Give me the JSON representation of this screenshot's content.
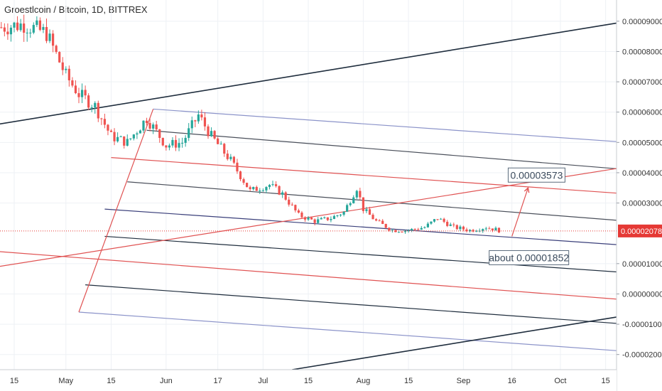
{
  "chart_data": {
    "type": "candlestick",
    "title": "Groestlcoin / Bitcoin, 1D, BITTREX",
    "y_axis": {
      "min": -2.5e-06,
      "max": 9.7e-06,
      "ticks": [
        "0.00009000",
        "0.00008000",
        "0.00007000",
        "0.00006000",
        "0.00005000",
        "0.00004000",
        "0.00003000",
        "0.00001000",
        "0.00000000",
        "-0.00001000",
        "-0.00002000"
      ],
      "tick_values": [
        9e-06,
        8e-06,
        7e-06,
        6e-06,
        5e-06,
        4e-06,
        3e-06,
        1e-06,
        0.0,
        -1e-06,
        -2e-06
      ]
    },
    "x_axis": {
      "ticks": [
        "15",
        "May",
        "15",
        "Jun",
        "17",
        "Jul",
        "15",
        "Aug",
        "15",
        "Sep",
        "16",
        "Oct",
        "15"
      ],
      "tick_dates": [
        "2019-04-15",
        "2019-05-01",
        "2019-05-15",
        "2019-06-01",
        "2019-06-17",
        "2019-07-01",
        "2019-07-15",
        "2019-08-01",
        "2019-08-15",
        "2019-09-01",
        "2019-09-16",
        "2019-10-01",
        "2019-10-15"
      ]
    },
    "last_price": {
      "value": 2.078e-06,
      "label": "0.00002078",
      "color": "#e53935"
    },
    "colors": {
      "up": "#26a69a",
      "down": "#ef5350",
      "background": "#ffffff",
      "grid": "#eef1f5"
    },
    "price_path": [
      [
        "2019-04-11",
        8.8e-06
      ],
      [
        "2019-04-18",
        8.9e-06
      ],
      [
        "2019-04-25",
        8.6e-06
      ],
      [
        "2019-05-01",
        7.2e-06
      ],
      [
        "2019-05-05",
        6.6e-06
      ],
      [
        "2019-05-10",
        6.2e-06
      ],
      [
        "2019-05-15",
        5.2e-06
      ],
      [
        "2019-05-20",
        5e-06
      ],
      [
        "2019-05-26",
        5.8e-06
      ],
      [
        "2019-06-01",
        4.9e-06
      ],
      [
        "2019-06-06",
        5e-06
      ],
      [
        "2019-06-11",
        5.9e-06
      ],
      [
        "2019-06-15",
        5.2e-06
      ],
      [
        "2019-06-21",
        4.4e-06
      ],
      [
        "2019-06-27",
        3.4e-06
      ],
      [
        "2019-07-03",
        3.6e-06
      ],
      [
        "2019-07-07",
        3.3e-06
      ],
      [
        "2019-07-12",
        2.6e-06
      ],
      [
        "2019-07-17",
        2.4e-06
      ],
      [
        "2019-07-22",
        2.5e-06
      ],
      [
        "2019-07-26",
        2.7e-06
      ],
      [
        "2019-07-30",
        3.5e-06
      ],
      [
        "2019-08-01",
        2.8e-06
      ],
      [
        "2019-08-05",
        2.4e-06
      ],
      [
        "2019-08-10",
        2.1e-06
      ],
      [
        "2019-08-15",
        2.1e-06
      ],
      [
        "2019-08-20",
        2.2e-06
      ],
      [
        "2019-08-24",
        2.5e-06
      ],
      [
        "2019-08-29",
        2.2e-06
      ],
      [
        "2019-09-03",
        2.1e-06
      ],
      [
        "2019-09-08",
        2.2e-06
      ],
      [
        "2019-09-12",
        2.1e-06
      ]
    ],
    "annotations": [
      {
        "text": "0.00003573",
        "kind": "target-label"
      },
      {
        "text": "about 0.00001852",
        "kind": "start-label"
      }
    ],
    "drawing_lines": [
      {
        "role": "long-upper-trendline",
        "color": "#1f2d3d",
        "from": [
          "2019-04-10",
          5.6e-06
        ],
        "to": [
          "2019-10-22",
          9e-06
        ]
      },
      {
        "role": "long-lower-trendline",
        "color": "#1f2d3d",
        "from": [
          "2019-07-10",
          -2.5e-06
        ],
        "to": [
          "2019-10-22",
          -7e-07
        ]
      },
      {
        "role": "red-rising-line",
        "color": "#e05252",
        "from": [
          "2019-04-10",
          9e-07
        ],
        "to": [
          "2019-10-22",
          4.2e-06
        ]
      },
      {
        "role": "pitchfork-handle",
        "color": "#e05252",
        "from": [
          "2019-05-05",
          -6e-07
        ],
        "to": [
          "2019-05-28",
          6.1e-06
        ]
      },
      {
        "role": "arrow",
        "color": "#e05252",
        "from": [
          "2019-09-16",
          1.9e-06
        ],
        "to": [
          "2019-09-21",
          3.5e-06
        ]
      }
    ],
    "channel_lines": [
      {
        "color": "#8b93c9",
        "from": [
          "2019-05-28",
          6.1e-06
        ],
        "to": [
          "2019-10-22",
          5e-06
        ]
      },
      {
        "color": "#4a4f5a",
        "from": [
          "2019-05-26",
          5.4e-06
        ],
        "to": [
          "2019-10-22",
          4.1e-06
        ]
      },
      {
        "color": "#e05252",
        "from": [
          "2019-05-15",
          4.5e-06
        ],
        "to": [
          "2019-10-22",
          3.3e-06
        ]
      },
      {
        "color": "#4a4f5a",
        "from": [
          "2019-05-20",
          3.7e-06
        ],
        "to": [
          "2019-10-22",
          2.4e-06
        ]
      },
      {
        "color": "#3a3f7a",
        "from": [
          "2019-05-13",
          2.8e-06
        ],
        "to": [
          "2019-10-22",
          1.6e-06
        ]
      },
      {
        "color": "#1f2d3d",
        "from": [
          "2019-05-13",
          1.9e-06
        ],
        "to": [
          "2019-10-22",
          7e-07
        ]
      },
      {
        "color": "#e05252",
        "from": [
          "2019-04-10",
          1.4e-06
        ],
        "to": [
          "2019-10-22",
          -2e-07
        ]
      },
      {
        "color": "#1f2d3d",
        "from": [
          "2019-05-07",
          3e-07
        ],
        "to": [
          "2019-10-22",
          -1e-06
        ]
      },
      {
        "color": "#8b93c9",
        "from": [
          "2019-05-05",
          -6e-07
        ],
        "to": [
          "2019-10-22",
          -1.9e-06
        ]
      }
    ]
  }
}
